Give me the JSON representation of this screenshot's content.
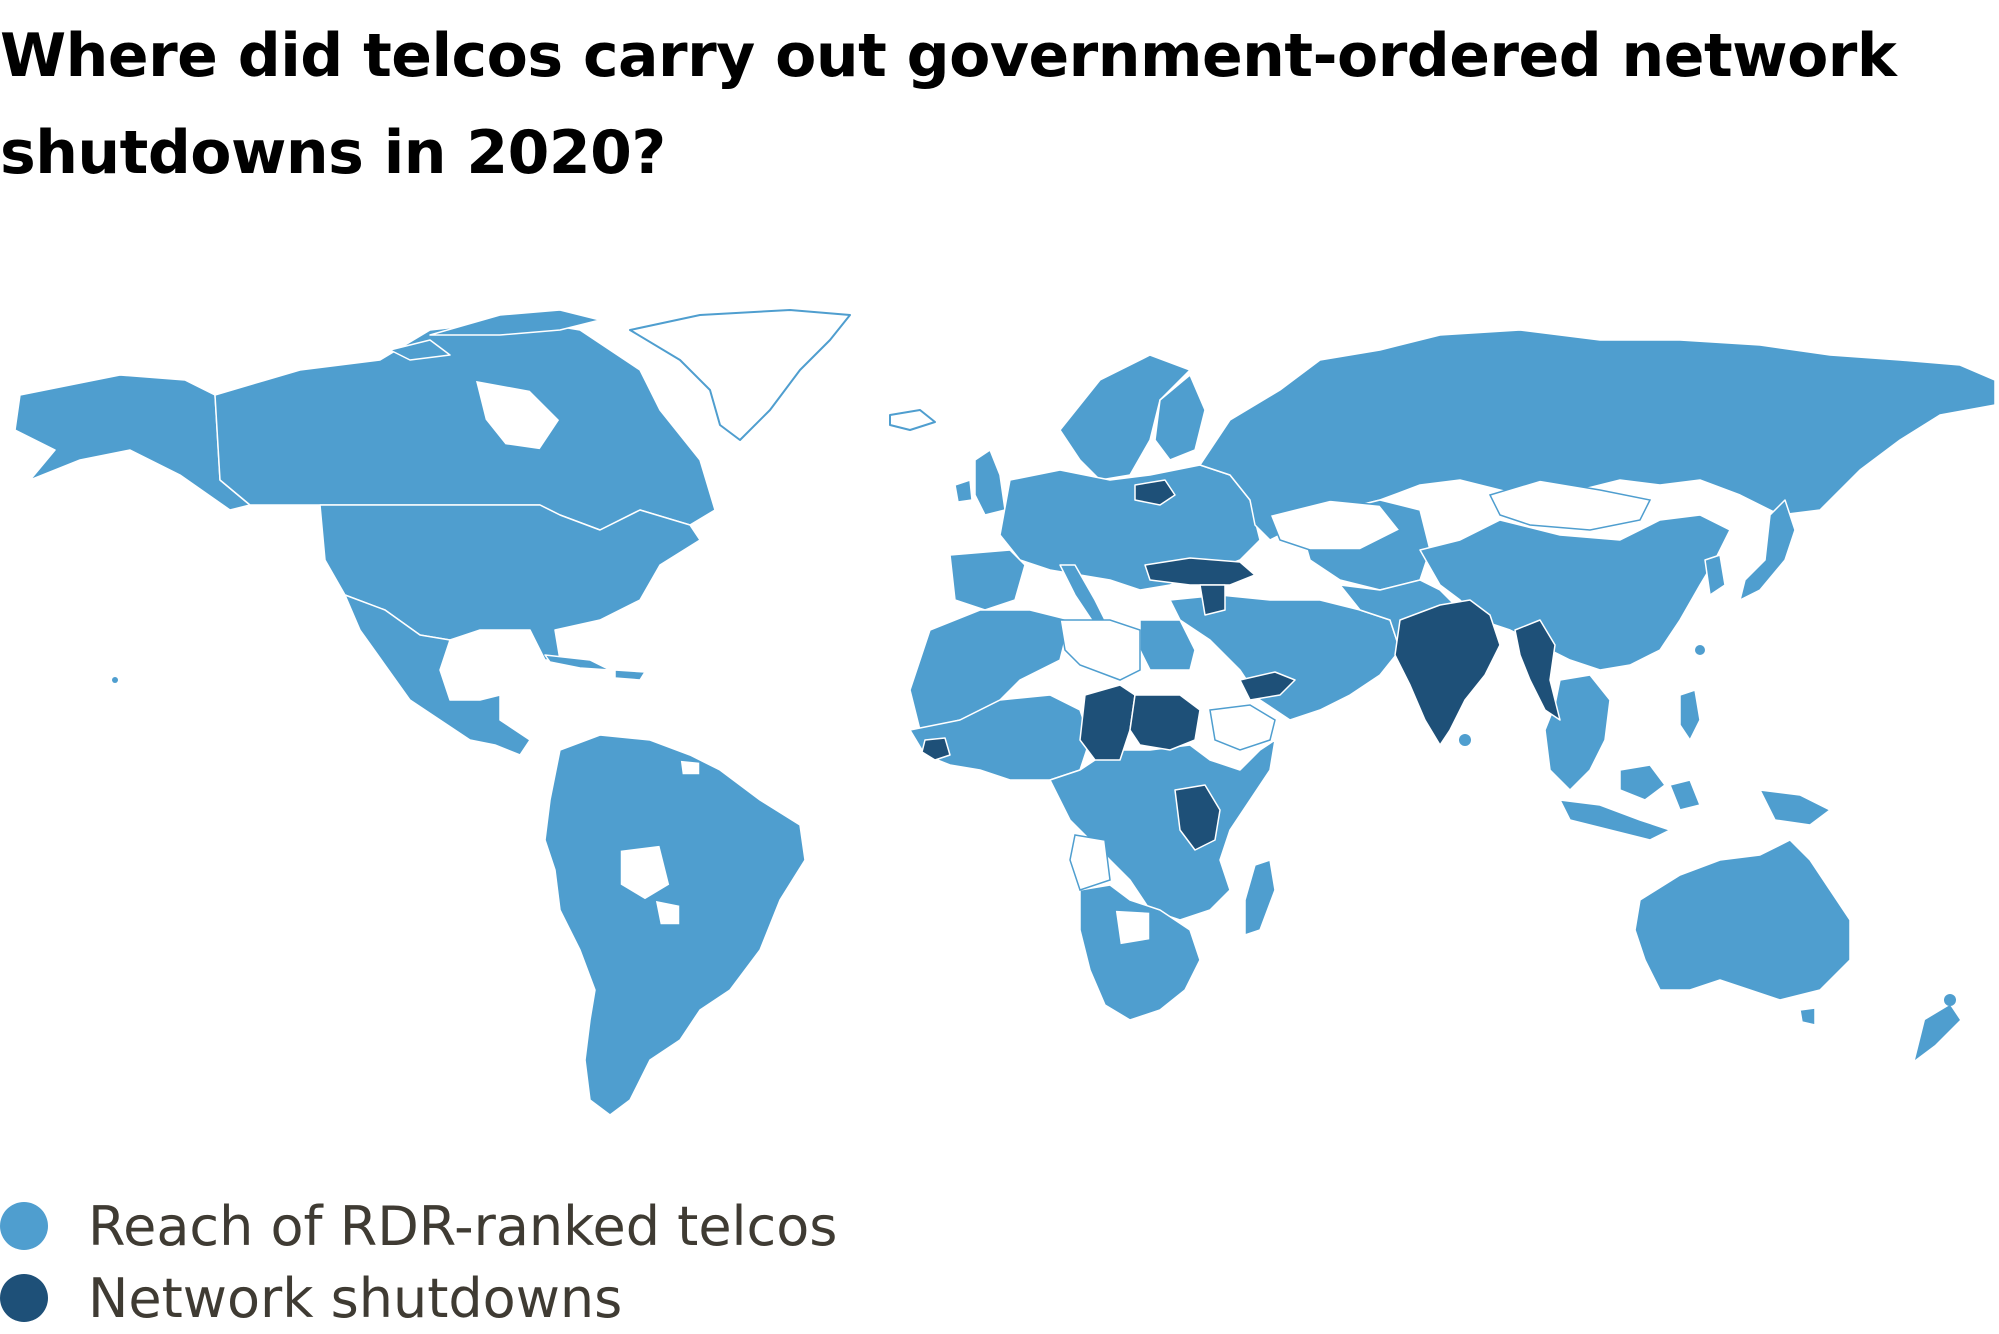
{
  "title": "Where did telcos carry out government-ordered network shutdowns in 2020?",
  "colors": {
    "reach": "#4f9ecf",
    "shutdown": "#1e5078",
    "no_data": "#ffffff",
    "border": "#ffffff"
  },
  "legend": [
    {
      "label": "Reach of RDR-ranked telcos",
      "color": "#4f9ecf"
    },
    {
      "label": "Network shutdowns",
      "color": "#1e5078"
    }
  ]
}
